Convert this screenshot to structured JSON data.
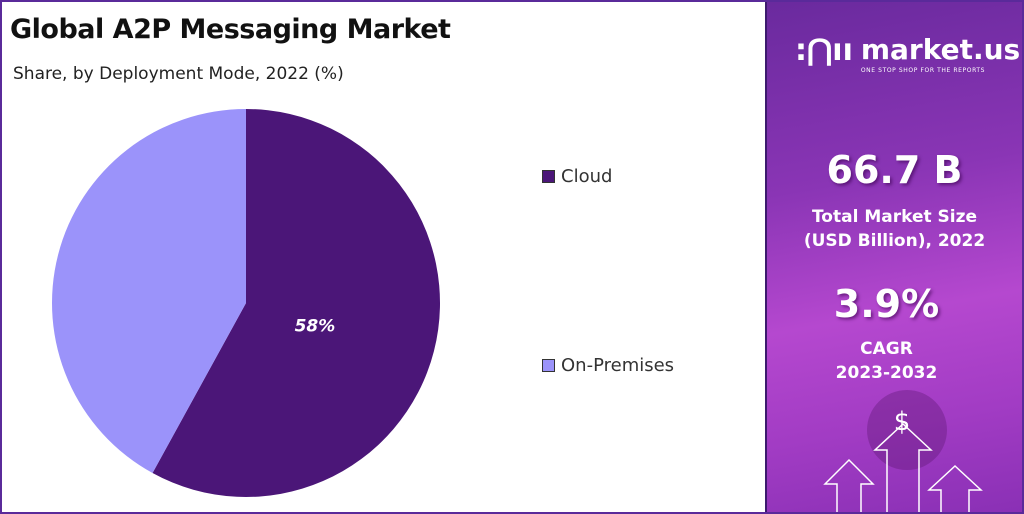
{
  "chart_data": {
    "type": "pie",
    "title": "Global A2P Messaging Market",
    "subtitle": "Share, by Deployment Mode, 2022 (%)",
    "categories": [
      "Cloud",
      "On-Premises"
    ],
    "values": [
      58,
      42
    ],
    "data_labels": [
      "58%",
      ""
    ],
    "colors": [
      "#4b1678",
      "#9b93fa"
    ],
    "legend_position": "right",
    "start_angle": "top, clockwise"
  },
  "panel": {
    "logo_text": "market.us",
    "logo_tagline": "ONE STOP SHOP FOR THE REPORTS",
    "market_size_value": "66.7 B",
    "market_size_label_1": "Total Market Size",
    "market_size_label_2": "(USD Billion), 2022",
    "cagr_value": "3.9%",
    "cagr_label": "CAGR",
    "cagr_period": "2023-2032",
    "currency_symbol": "$"
  }
}
